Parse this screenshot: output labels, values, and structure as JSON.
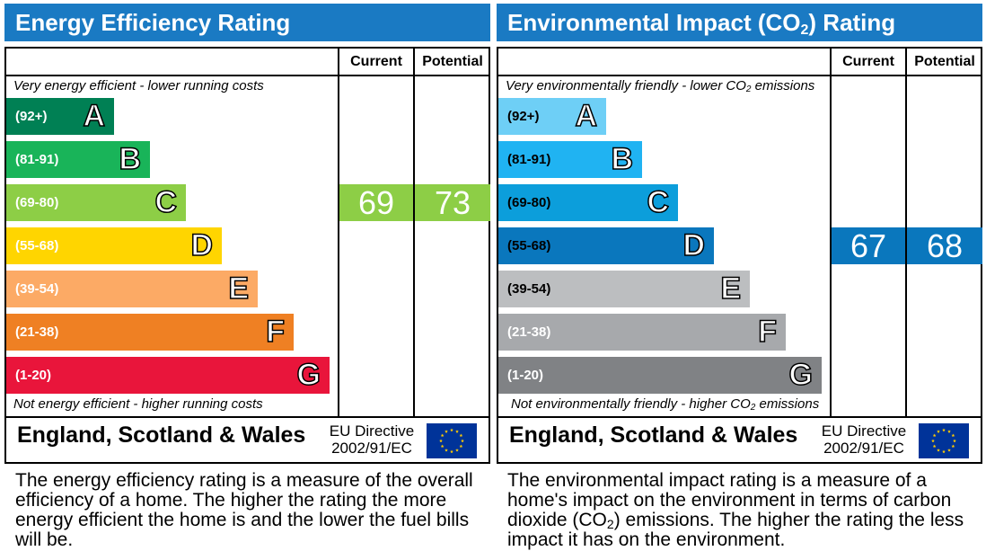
{
  "energy": {
    "title": "Energy Efficiency Rating",
    "headers": {
      "current": "Current",
      "potential": "Potential"
    },
    "note_top": "Very energy efficient - lower running costs",
    "note_bottom": "Not energy efficient - higher running costs",
    "region": "England, Scotland & Wales",
    "directive_line1": "EU Directive",
    "directive_line2": "2002/91/EC",
    "description": "The energy efficiency rating is a measure of the overall efficiency of a home. The higher the rating the more energy efficient the home is and the lower the fuel bills will be."
  },
  "environment": {
    "title_pre": "Environmental Impact (CO",
    "title_sub": "2",
    "title_post": ") Rating",
    "headers": {
      "current": "Current",
      "potential": "Potential"
    },
    "note_top_pre": "Very environmentally friendly - lower CO",
    "note_top_sub": "2",
    "note_top_post": " emissions",
    "note_bottom_pre": "Not environmentally friendly - higher CO",
    "note_bottom_sub": "2",
    "note_bottom_post": " emissions",
    "region": "England, Scotland & Wales",
    "directive_line1": "EU Directive",
    "directive_line2": "2002/91/EC",
    "description_pre": "The environmental impact rating is a measure of a home's impact on the environment in terms of carbon dioxide (CO",
    "description_sub": "2",
    "description_post": ") emissions. The higher the rating the less impact it has on the environment."
  },
  "chart_data": [
    {
      "type": "table",
      "title": "Energy Efficiency Rating",
      "bands": [
        {
          "letter": "A",
          "range": "(92+)",
          "color": "#008054"
        },
        {
          "letter": "B",
          "range": "(81-91)",
          "color": "#19b459"
        },
        {
          "letter": "C",
          "range": "(69-80)",
          "color": "#8dce46"
        },
        {
          "letter": "D",
          "range": "(55-68)",
          "color": "#ffd500"
        },
        {
          "letter": "E",
          "range": "(39-54)",
          "color": "#fcaa65"
        },
        {
          "letter": "F",
          "range": "(21-38)",
          "color": "#ef8023"
        },
        {
          "letter": "G",
          "range": "(1-20)",
          "color": "#e9153b"
        }
      ],
      "current": {
        "value": 69,
        "band": "C",
        "color": "#8dce46"
      },
      "potential": {
        "value": 73,
        "band": "C",
        "color": "#8dce46"
      }
    },
    {
      "type": "table",
      "title": "Environmental Impact (CO2) Rating",
      "bands": [
        {
          "letter": "A",
          "range": "(92+)",
          "color": "#6ecff6"
        },
        {
          "letter": "B",
          "range": "(81-91)",
          "color": "#20b3f2"
        },
        {
          "letter": "C",
          "range": "(69-80)",
          "color": "#0c9edb"
        },
        {
          "letter": "D",
          "range": "(55-68)",
          "color": "#0a77bd"
        },
        {
          "letter": "E",
          "range": "(39-54)",
          "color": "#bcbec0"
        },
        {
          "letter": "F",
          "range": "(21-38)",
          "color": "#a7a9ac"
        },
        {
          "letter": "G",
          "range": "(1-20)",
          "color": "#808285"
        }
      ],
      "current": {
        "value": 67,
        "band": "D",
        "color": "#0a77bd"
      },
      "potential": {
        "value": 68,
        "band": "D",
        "color": "#0a77bd"
      }
    }
  ]
}
